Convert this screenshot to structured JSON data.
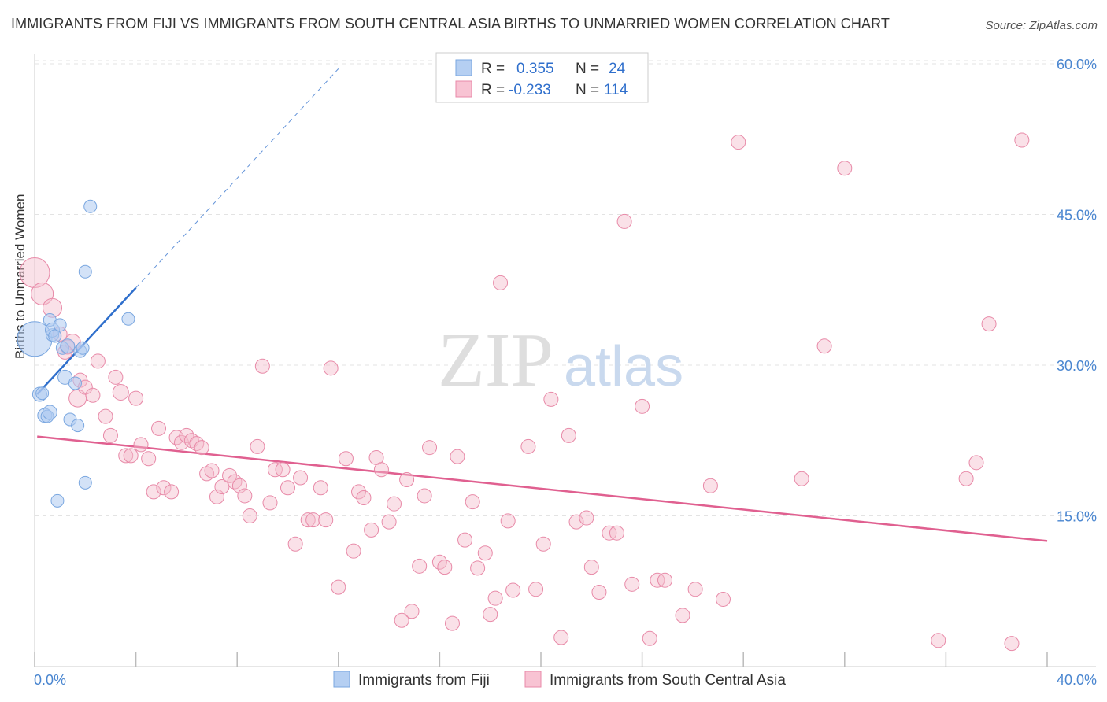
{
  "title": "IMMIGRANTS FROM FIJI VS IMMIGRANTS FROM SOUTH CENTRAL ASIA BIRTHS TO UNMARRIED WOMEN CORRELATION CHART",
  "source": "Source: ZipAtlas.com",
  "watermark": {
    "zip": "ZIP",
    "atlas": "atlas"
  },
  "colors": {
    "fiji": "#7aa7e0",
    "fiji_fill": "#aecbf0",
    "fiji_line": "#2f6fcc",
    "sca": "#e88aa8",
    "sca_fill": "#f5bccd",
    "sca_line": "#e06090",
    "value_text": "#2f6fcc"
  },
  "legend": {
    "rows": [
      {
        "r_label": "R =",
        "r_value": "0.355",
        "n_label": "N =",
        "n_value": "24"
      },
      {
        "r_label": "R =",
        "r_value": "-0.233",
        "n_label": "N =",
        "n_value": "114"
      }
    ]
  },
  "bottom_legend": [
    "Immigrants from Fiji",
    "Immigrants from South Central Asia"
  ],
  "chart_data": {
    "type": "scatter",
    "title": "IMMIGRANTS FROM FIJI VS IMMIGRANTS FROM SOUTH CENTRAL ASIA BIRTHS TO UNMARRIED WOMEN CORRELATION CHART",
    "xlabel": "",
    "ylabel": "Births to Unmarried Women",
    "xlim": [
      0,
      40
    ],
    "ylim": [
      0,
      60
    ],
    "x_tick_labels": [
      "0.0%",
      "40.0%"
    ],
    "y_tick_labels": [
      "15.0%",
      "30.0%",
      "45.0%",
      "60.0%"
    ],
    "y_ticks": [
      15,
      30,
      45,
      60
    ],
    "grid": true,
    "legend_position": "top-center",
    "series": [
      {
        "name": "Immigrants from Fiji",
        "trend": {
          "x": [
            0.1,
            4.0
          ],
          "y": [
            27.1,
            37.7
          ],
          "dashed_to": [
            12.0,
            59.5
          ]
        },
        "points": [
          [
            0.0,
            32.6,
            22
          ],
          [
            0.2,
            27.1,
            9
          ],
          [
            0.3,
            27.2,
            8
          ],
          [
            0.4,
            25.0,
            9
          ],
          [
            0.5,
            24.9,
            8
          ],
          [
            0.6,
            34.5,
            8
          ],
          [
            0.6,
            25.3,
            9
          ],
          [
            0.7,
            33.0,
            8
          ],
          [
            0.7,
            33.5,
            9
          ],
          [
            0.8,
            32.9,
            8
          ],
          [
            1.0,
            34.0,
            8
          ],
          [
            1.1,
            31.7,
            8
          ],
          [
            1.2,
            28.8,
            9
          ],
          [
            1.3,
            31.9,
            9
          ],
          [
            1.4,
            24.6,
            8
          ],
          [
            1.6,
            28.2,
            8
          ],
          [
            1.7,
            24.0,
            8
          ],
          [
            1.8,
            31.4,
            8
          ],
          [
            1.9,
            31.7,
            8
          ],
          [
            2.0,
            18.3,
            8
          ],
          [
            0.9,
            16.5,
            8
          ],
          [
            2.2,
            45.8,
            8
          ],
          [
            2.0,
            39.3,
            8
          ],
          [
            3.7,
            34.6,
            8
          ]
        ]
      },
      {
        "name": "Immigrants from South Central Asia",
        "trend": {
          "x": [
            0.1,
            40.0
          ],
          "y": [
            22.9,
            12.5
          ]
        },
        "points": [
          [
            0.0,
            39.2,
            19
          ],
          [
            0.3,
            37.1,
            14
          ],
          [
            0.7,
            35.7,
            12
          ],
          [
            1.0,
            33.1,
            9
          ],
          [
            1.3,
            31.8,
            9
          ],
          [
            1.5,
            32.3,
            10
          ],
          [
            1.2,
            31.3,
            9
          ],
          [
            1.7,
            26.7,
            11
          ],
          [
            1.8,
            28.5,
            9
          ],
          [
            2.0,
            27.8,
            9
          ],
          [
            2.3,
            27.0,
            9
          ],
          [
            2.5,
            30.4,
            9
          ],
          [
            2.8,
            24.9,
            9
          ],
          [
            3.0,
            23.0,
            9
          ],
          [
            3.2,
            28.8,
            9
          ],
          [
            3.4,
            27.3,
            10
          ],
          [
            3.6,
            21.0,
            9
          ],
          [
            3.8,
            21.0,
            9
          ],
          [
            4.0,
            26.7,
            9
          ],
          [
            4.2,
            22.1,
            9
          ],
          [
            4.5,
            20.7,
            9
          ],
          [
            4.7,
            17.4,
            9
          ],
          [
            4.9,
            23.7,
            9
          ],
          [
            5.1,
            17.8,
            9
          ],
          [
            5.4,
            17.4,
            9
          ],
          [
            5.6,
            22.8,
            9
          ],
          [
            5.8,
            22.3,
            9
          ],
          [
            6.0,
            23.0,
            9
          ],
          [
            6.2,
            22.5,
            9
          ],
          [
            6.4,
            22.2,
            9
          ],
          [
            6.6,
            21.8,
            9
          ],
          [
            6.8,
            19.2,
            9
          ],
          [
            7.0,
            19.5,
            9
          ],
          [
            7.2,
            16.9,
            9
          ],
          [
            7.4,
            17.9,
            9
          ],
          [
            7.7,
            19.0,
            9
          ],
          [
            7.9,
            18.4,
            9
          ],
          [
            8.1,
            18.0,
            9
          ],
          [
            8.3,
            17.0,
            9
          ],
          [
            8.5,
            15.0,
            9
          ],
          [
            8.8,
            21.9,
            9
          ],
          [
            9.0,
            29.9,
            9
          ],
          [
            9.3,
            16.3,
            9
          ],
          [
            9.5,
            19.6,
            9
          ],
          [
            9.8,
            19.6,
            9
          ],
          [
            10.0,
            17.8,
            9
          ],
          [
            10.3,
            12.2,
            9
          ],
          [
            10.5,
            18.8,
            9
          ],
          [
            10.8,
            14.6,
            9
          ],
          [
            11.0,
            14.6,
            9
          ],
          [
            11.3,
            17.8,
            9
          ],
          [
            11.5,
            14.6,
            9
          ],
          [
            11.7,
            29.7,
            9
          ],
          [
            12.0,
            7.9,
            9
          ],
          [
            12.3,
            20.7,
            9
          ],
          [
            12.6,
            11.5,
            9
          ],
          [
            12.8,
            17.4,
            9
          ],
          [
            13.0,
            16.8,
            9
          ],
          [
            13.3,
            13.6,
            9
          ],
          [
            13.5,
            20.8,
            9
          ],
          [
            13.7,
            19.6,
            9
          ],
          [
            14.0,
            14.4,
            9
          ],
          [
            14.2,
            16.2,
            9
          ],
          [
            14.5,
            4.6,
            9
          ],
          [
            14.7,
            18.6,
            9
          ],
          [
            14.9,
            5.5,
            9
          ],
          [
            15.2,
            10.0,
            9
          ],
          [
            15.4,
            17.0,
            9
          ],
          [
            15.6,
            21.8,
            9
          ],
          [
            16.0,
            10.4,
            9
          ],
          [
            16.2,
            9.9,
            9
          ],
          [
            16.5,
            4.3,
            9
          ],
          [
            16.7,
            20.9,
            9
          ],
          [
            17.0,
            12.6,
            9
          ],
          [
            17.3,
            16.4,
            9
          ],
          [
            17.5,
            9.8,
            9
          ],
          [
            17.8,
            11.3,
            9
          ],
          [
            18.0,
            5.2,
            9
          ],
          [
            18.2,
            6.8,
            9
          ],
          [
            18.4,
            38.2,
            9
          ],
          [
            18.7,
            14.5,
            9
          ],
          [
            18.9,
            7.6,
            9
          ],
          [
            19.5,
            21.9,
            9
          ],
          [
            19.8,
            7.7,
            9
          ],
          [
            20.1,
            12.2,
            9
          ],
          [
            20.4,
            26.6,
            9
          ],
          [
            20.8,
            2.9,
            9
          ],
          [
            21.1,
            23.0,
            9
          ],
          [
            21.4,
            14.4,
            9
          ],
          [
            21.8,
            14.8,
            9
          ],
          [
            22.0,
            9.9,
            9
          ],
          [
            22.3,
            7.4,
            9
          ],
          [
            22.7,
            13.3,
            9
          ],
          [
            23.0,
            13.3,
            9
          ],
          [
            23.3,
            44.3,
            9
          ],
          [
            23.6,
            8.2,
            9
          ],
          [
            24.0,
            25.9,
            9
          ],
          [
            24.3,
            2.8,
            9
          ],
          [
            24.6,
            8.6,
            9
          ],
          [
            24.9,
            8.6,
            9
          ],
          [
            25.6,
            5.1,
            9
          ],
          [
            26.1,
            7.7,
            9
          ],
          [
            26.7,
            18.0,
            9
          ],
          [
            27.2,
            6.7,
            9
          ],
          [
            27.8,
            52.2,
            9
          ],
          [
            30.3,
            18.7,
            9
          ],
          [
            31.2,
            31.9,
            9
          ],
          [
            32.0,
            49.6,
            9
          ],
          [
            35.7,
            2.6,
            9
          ],
          [
            36.8,
            18.7,
            9
          ],
          [
            37.2,
            20.3,
            9
          ],
          [
            37.7,
            34.1,
            9
          ],
          [
            38.6,
            2.3,
            9
          ],
          [
            39.0,
            52.4,
            9
          ]
        ]
      }
    ]
  }
}
